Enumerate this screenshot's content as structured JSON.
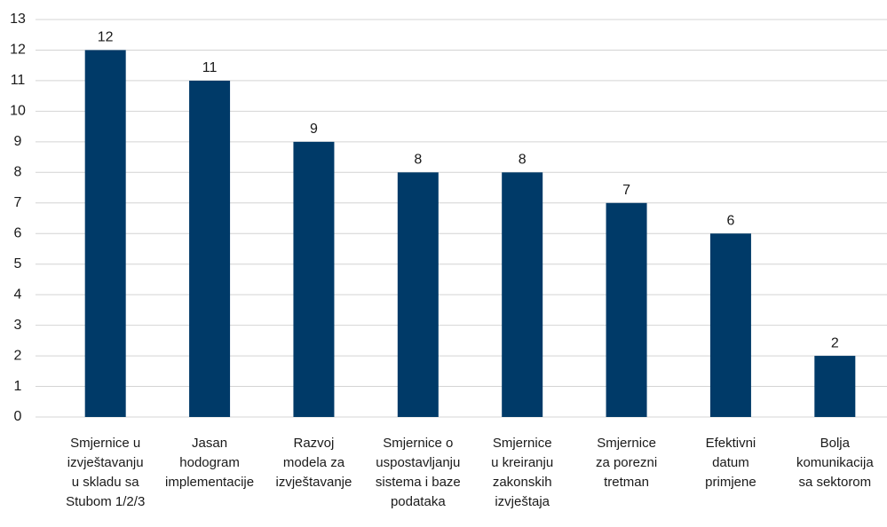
{
  "chart_data": {
    "type": "bar",
    "categories": [
      "Smjernice u\nizvještavanju\nu skladu sa\nStubom 1/2/3",
      "Jasan\nhodogram\nimplementacije",
      "Razvoj\nmodela za\nizvještavanje",
      "Smjernice o\nuspostavljanju\nsistema i baze\npodataka",
      "Smjernice\nu kreiranju\nzakonskih\nizvještaja",
      "Smjernice\nza porezni\ntretman",
      "Efektivni\ndatum\nprimjene",
      "Bolja\nkomunikacija\nsa sektorom"
    ],
    "values": [
      12,
      11,
      9,
      8,
      8,
      7,
      6,
      2
    ],
    "color": "#003a68",
    "ylim": [
      0,
      13
    ],
    "yticks": [
      0,
      1,
      2,
      3,
      4,
      5,
      6,
      7,
      8,
      9,
      10,
      11,
      12,
      13
    ],
    "grid": true
  }
}
